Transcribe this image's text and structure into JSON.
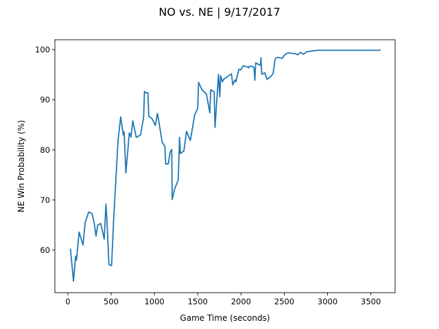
{
  "chart_data": {
    "type": "line",
    "title": "NO vs. NE | 9/17/2017",
    "xlabel": "Game Time (seconds)",
    "ylabel": "NE Win Probability (%)",
    "xlim": [
      -150,
      3780
    ],
    "ylim": [
      51.5,
      102
    ],
    "x_ticks": [
      0,
      500,
      1000,
      1500,
      2000,
      2500,
      3000,
      3500
    ],
    "y_ticks": [
      60,
      70,
      80,
      90,
      100
    ],
    "grid": false,
    "line_color": "#1f77b4",
    "series": [
      {
        "points": [
          [
            30,
            60.2
          ],
          [
            65,
            53.8
          ],
          [
            90,
            58.8
          ],
          [
            100,
            58.0
          ],
          [
            130,
            63.6
          ],
          [
            175,
            61.0
          ],
          [
            200,
            65.5
          ],
          [
            240,
            67.6
          ],
          [
            280,
            67.3
          ],
          [
            305,
            65.3
          ],
          [
            325,
            62.8
          ],
          [
            345,
            65.0
          ],
          [
            380,
            65.3
          ],
          [
            420,
            62.2
          ],
          [
            440,
            69.2
          ],
          [
            450,
            66.3
          ],
          [
            475,
            57.1
          ],
          [
            505,
            56.9
          ],
          [
            530,
            66.5
          ],
          [
            580,
            82.0
          ],
          [
            610,
            86.6
          ],
          [
            640,
            83.0
          ],
          [
            650,
            83.6
          ],
          [
            670,
            75.4
          ],
          [
            710,
            83.4
          ],
          [
            730,
            82.6
          ],
          [
            750,
            85.8
          ],
          [
            790,
            82.5
          ],
          [
            840,
            83.0
          ],
          [
            875,
            86.5
          ],
          [
            885,
            91.7
          ],
          [
            900,
            91.4
          ],
          [
            925,
            91.4
          ],
          [
            935,
            86.7
          ],
          [
            970,
            86.3
          ],
          [
            1010,
            84.9
          ],
          [
            1035,
            87.3
          ],
          [
            1090,
            81.5
          ],
          [
            1120,
            80.8
          ],
          [
            1130,
            77.2
          ],
          [
            1160,
            77.2
          ],
          [
            1180,
            79.5
          ],
          [
            1200,
            80.1
          ],
          [
            1205,
            70.1
          ],
          [
            1235,
            72.3
          ],
          [
            1275,
            74.0
          ],
          [
            1290,
            82.5
          ],
          [
            1300,
            79.3
          ],
          [
            1340,
            79.8
          ],
          [
            1370,
            83.7
          ],
          [
            1415,
            81.9
          ],
          [
            1465,
            87.0
          ],
          [
            1500,
            88.3
          ],
          [
            1510,
            93.5
          ],
          [
            1550,
            92.0
          ],
          [
            1580,
            91.5
          ],
          [
            1600,
            91.2
          ],
          [
            1640,
            87.4
          ],
          [
            1650,
            92.0
          ],
          [
            1690,
            91.6
          ],
          [
            1700,
            84.5
          ],
          [
            1740,
            95.1
          ],
          [
            1755,
            90.6
          ],
          [
            1765,
            94.8
          ],
          [
            1785,
            93.6
          ],
          [
            1800,
            94.1
          ],
          [
            1840,
            94.6
          ],
          [
            1890,
            95.2
          ],
          [
            1905,
            93.0
          ],
          [
            1930,
            94.0
          ],
          [
            1940,
            93.6
          ],
          [
            1975,
            96.1
          ],
          [
            2000,
            96.0
          ],
          [
            2025,
            96.8
          ],
          [
            2070,
            96.6
          ],
          [
            2090,
            96.4
          ],
          [
            2095,
            96.7
          ],
          [
            2135,
            96.7
          ],
          [
            2150,
            96.4
          ],
          [
            2160,
            93.9
          ],
          [
            2170,
            97.4
          ],
          [
            2200,
            97.1
          ],
          [
            2225,
            96.9
          ],
          [
            2230,
            98.4
          ],
          [
            2240,
            95.1
          ],
          [
            2260,
            95.3
          ],
          [
            2275,
            95.4
          ],
          [
            2300,
            94.1
          ],
          [
            2340,
            94.6
          ],
          [
            2370,
            95.2
          ],
          [
            2395,
            98.2
          ],
          [
            2420,
            98.5
          ],
          [
            2475,
            98.3
          ],
          [
            2505,
            99.0
          ],
          [
            2545,
            99.4
          ],
          [
            2585,
            99.3
          ],
          [
            2630,
            99.2
          ],
          [
            2655,
            99.0
          ],
          [
            2690,
            99.5
          ],
          [
            2720,
            99.1
          ],
          [
            2760,
            99.6
          ],
          [
            2800,
            99.7
          ],
          [
            2880,
            99.9
          ],
          [
            3000,
            99.9
          ],
          [
            3200,
            99.9
          ],
          [
            3400,
            99.9
          ],
          [
            3600,
            99.9
          ],
          [
            3605,
            100.0
          ]
        ]
      }
    ]
  }
}
